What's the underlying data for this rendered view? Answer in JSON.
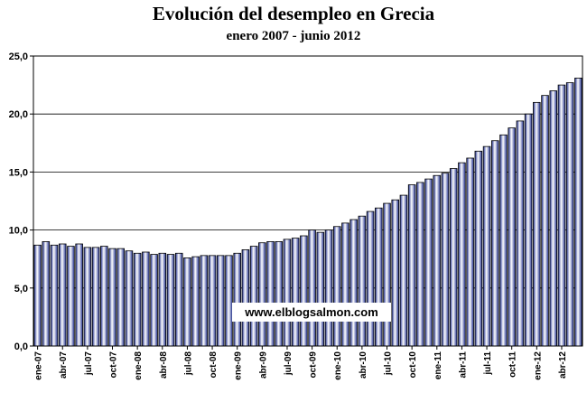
{
  "chart_data": {
    "type": "bar",
    "title": "Evolución del desempleo en Grecia",
    "subtitle": "enero 2007 - junio 2012",
    "watermark": "www.elblogsalmon.com",
    "color": "#1f2f8f",
    "categories": [
      "ene-07",
      null,
      null,
      "abr-07",
      null,
      null,
      "jul-07",
      null,
      null,
      "oct-07",
      null,
      null,
      "ene-08",
      null,
      null,
      "abr-08",
      null,
      null,
      "jul-08",
      null,
      null,
      "oct-08",
      null,
      null,
      "ene-09",
      null,
      null,
      "abr-09",
      null,
      null,
      "jul-09",
      null,
      null,
      "oct-09",
      null,
      null,
      "ene-10",
      null,
      null,
      "abr-10",
      null,
      null,
      "jul-10",
      null,
      null,
      "oct-10",
      null,
      null,
      "ene-11",
      null,
      null,
      "abr-11",
      null,
      null,
      "jul-11",
      null,
      null,
      "oct-11",
      null,
      null,
      "ene-12",
      null,
      null,
      "abr-12",
      null,
      null
    ],
    "values": [
      8.7,
      9.0,
      8.7,
      8.8,
      8.6,
      8.8,
      8.5,
      8.5,
      8.6,
      8.4,
      8.4,
      8.2,
      8.0,
      8.1,
      7.9,
      8.0,
      7.9,
      8.0,
      7.6,
      7.7,
      7.8,
      7.8,
      7.8,
      7.8,
      8.0,
      8.3,
      8.6,
      8.9,
      9.0,
      9.0,
      9.2,
      9.3,
      9.5,
      10.0,
      9.8,
      10.0,
      10.3,
      10.6,
      10.9,
      11.2,
      11.6,
      11.9,
      12.3,
      12.6,
      13.0,
      13.9,
      14.1,
      14.4,
      14.7,
      14.9,
      15.3,
      15.8,
      16.2,
      16.8,
      17.2,
      17.7,
      18.2,
      18.8,
      19.4,
      20.0,
      21.0,
      21.6,
      22.0,
      22.5,
      22.7,
      23.1
    ],
    "ylim": [
      0,
      25
    ],
    "yticks": [
      {
        "value": 0,
        "label": "0,0"
      },
      {
        "value": 5,
        "label": "5,0"
      },
      {
        "value": 10,
        "label": "10,0"
      },
      {
        "value": 15,
        "label": "15,0"
      },
      {
        "value": 20,
        "label": "20,0"
      },
      {
        "value": 25,
        "label": "25,0"
      }
    ],
    "grid": true
  }
}
